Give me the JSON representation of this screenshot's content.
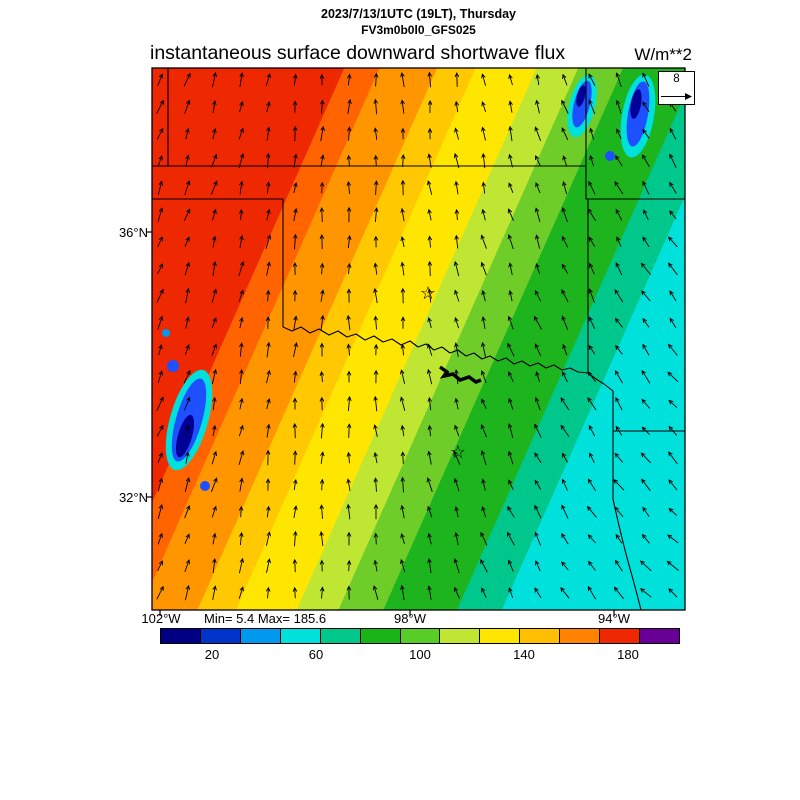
{
  "header": {
    "datetime_line": "2023/7/13/1UTC (19LT), Thursday",
    "model_line": "FV3m0b0l0_GFS025",
    "title": "instantaneous surface downward shortwave flux",
    "units": "W/m**2"
  },
  "map_labels": {
    "lat": [
      "36°N",
      "32°N"
    ],
    "lon": [
      "102°W",
      "98°W",
      "94°W"
    ],
    "stats": "Min= 5.4 Max= 185.6",
    "ref_value": "8"
  },
  "map_markers": [
    {
      "symbol": "☆",
      "name": "station-star-north"
    },
    {
      "symbol": "☆",
      "name": "station-star-south"
    }
  ],
  "chart_data": {
    "type": "heatmap",
    "title": "instantaneous surface downward shortwave flux",
    "units": "W/m**2",
    "valid_time": "2023/7/13/1UTC (19LT), Thursday",
    "model_run": "FV3m0b0l0_GFS025",
    "min": 5.4,
    "max": 185.6,
    "region": {
      "lat_ticks_deg": [
        36,
        32
      ],
      "lon_ticks_deg": [
        -102,
        -98,
        -94
      ]
    },
    "colorbar": {
      "ticks": [
        20,
        60,
        100,
        140,
        180
      ],
      "range": [
        0,
        200
      ],
      "colors": [
        "#000082",
        "#0033c8",
        "#0099ee",
        "#00e1dc",
        "#00c88c",
        "#18b418",
        "#58cd28",
        "#bee632",
        "#ffe600",
        "#ffbe00",
        "#ff8200",
        "#ee2800",
        "#690096"
      ]
    },
    "flux_bands": {
      "note": "diagonal bands, high flux (red) northwest to low flux (cyan) southeast",
      "gradient_vector": [
        1,
        0.45
      ],
      "segments": [
        {
          "value_range": [
            170,
            186
          ],
          "color": "#ee2800",
          "from": 0.0,
          "to": 0.3
        },
        {
          "value_range": [
            155,
            170
          ],
          "color": "#ff6400",
          "from": 0.3,
          "to": 0.355
        },
        {
          "value_range": [
            140,
            155
          ],
          "color": "#ff9600",
          "from": 0.355,
          "to": 0.445
        },
        {
          "value_range": [
            125,
            140
          ],
          "color": "#ffc800",
          "from": 0.445,
          "to": 0.505
        },
        {
          "value_range": [
            110,
            125
          ],
          "color": "#ffe600",
          "from": 0.505,
          "to": 0.6
        },
        {
          "value_range": [
            95,
            110
          ],
          "color": "#bee632",
          "from": 0.6,
          "to": 0.665
        },
        {
          "value_range": [
            80,
            95
          ],
          "color": "#6ecd28",
          "from": 0.665,
          "to": 0.735
        },
        {
          "value_range": [
            55,
            80
          ],
          "color": "#1eb41e",
          "from": 0.735,
          "to": 0.85
        },
        {
          "value_range": [
            40,
            55
          ],
          "color": "#00c88c",
          "from": 0.85,
          "to": 0.92
        },
        {
          "value_range": [
            25,
            40
          ],
          "color": "#00e1dc",
          "from": 0.92,
          "to": 1.0
        }
      ]
    },
    "cloud_patches": [
      {
        "location": "northeast Oklahoma",
        "colors": [
          "#00e1dc",
          "#1e50ff",
          "#000096"
        ]
      },
      {
        "location": "west Texas near western edge",
        "colors": [
          "#00e1dc",
          "#1e50ff",
          "#000096"
        ]
      }
    ],
    "wind": {
      "reference_value": 8,
      "grid_spacing_px": 27
    }
  }
}
